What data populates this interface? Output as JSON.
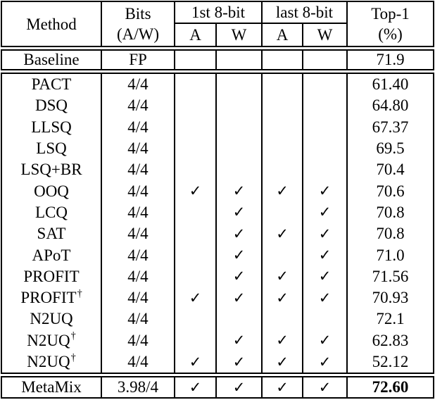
{
  "table": {
    "header": {
      "method": "Method",
      "bits_line1": "Bits",
      "bits_line2": "(A/W)",
      "group_first": "1st 8-bit",
      "group_last": "last 8-bit",
      "sub_a": "A",
      "sub_w": "W",
      "top1_line1": "Top-1",
      "top1_line2": "(%)"
    },
    "check_glyph": "✓",
    "dagger_glyph": "†",
    "colors": {
      "border": "#000000",
      "text": "#000000",
      "background": "#ffffff"
    },
    "sections": {
      "baseline": [
        {
          "method": "Baseline",
          "dagger": false,
          "bits": "FP",
          "checks": [
            false,
            false,
            false,
            false
          ],
          "top1": "71.9",
          "bold_top1": false
        }
      ],
      "methods": [
        {
          "method": "PACT",
          "dagger": false,
          "bits": "4/4",
          "checks": [
            false,
            false,
            false,
            false
          ],
          "top1": "61.40",
          "bold_top1": false
        },
        {
          "method": "DSQ",
          "dagger": false,
          "bits": "4/4",
          "checks": [
            false,
            false,
            false,
            false
          ],
          "top1": "64.80",
          "bold_top1": false
        },
        {
          "method": "LLSQ",
          "dagger": false,
          "bits": "4/4",
          "checks": [
            false,
            false,
            false,
            false
          ],
          "top1": "67.37",
          "bold_top1": false
        },
        {
          "method": "LSQ",
          "dagger": false,
          "bits": "4/4",
          "checks": [
            false,
            false,
            false,
            false
          ],
          "top1": "69.5",
          "bold_top1": false
        },
        {
          "method": "LSQ+BR",
          "dagger": false,
          "bits": "4/4",
          "checks": [
            false,
            false,
            false,
            false
          ],
          "top1": "70.4",
          "bold_top1": false
        },
        {
          "method": "OOQ",
          "dagger": false,
          "bits": "4/4",
          "checks": [
            true,
            true,
            true,
            true
          ],
          "top1": "70.6",
          "bold_top1": false
        },
        {
          "method": "LCQ",
          "dagger": false,
          "bits": "4/4",
          "checks": [
            false,
            true,
            false,
            true
          ],
          "top1": "70.8",
          "bold_top1": false
        },
        {
          "method": "SAT",
          "dagger": false,
          "bits": "4/4",
          "checks": [
            false,
            true,
            true,
            true
          ],
          "top1": "70.8",
          "bold_top1": false
        },
        {
          "method": "APoT",
          "dagger": false,
          "bits": "4/4",
          "checks": [
            false,
            true,
            false,
            true
          ],
          "top1": "71.0",
          "bold_top1": false
        },
        {
          "method": "PROFIT",
          "dagger": false,
          "bits": "4/4",
          "checks": [
            false,
            true,
            true,
            true
          ],
          "top1": "71.56",
          "bold_top1": false
        },
        {
          "method": "PROFIT",
          "dagger": true,
          "bits": "4/4",
          "checks": [
            true,
            true,
            true,
            true
          ],
          "top1": "70.93",
          "bold_top1": false
        },
        {
          "method": "N2UQ",
          "dagger": false,
          "bits": "4/4",
          "checks": [
            false,
            false,
            false,
            false
          ],
          "top1": "72.1",
          "bold_top1": false
        },
        {
          "method": "N2UQ",
          "dagger": true,
          "bits": "4/4",
          "checks": [
            false,
            true,
            true,
            true
          ],
          "top1": "62.83",
          "bold_top1": false
        },
        {
          "method": "N2UQ",
          "dagger": true,
          "bits": "4/4",
          "checks": [
            true,
            true,
            true,
            true
          ],
          "top1": "52.12",
          "bold_top1": false
        }
      ],
      "final": [
        {
          "method": "MetaMix",
          "dagger": false,
          "bits": "3.98/4",
          "checks": [
            true,
            true,
            true,
            true
          ],
          "top1": "72.60",
          "bold_top1": true
        }
      ]
    }
  }
}
